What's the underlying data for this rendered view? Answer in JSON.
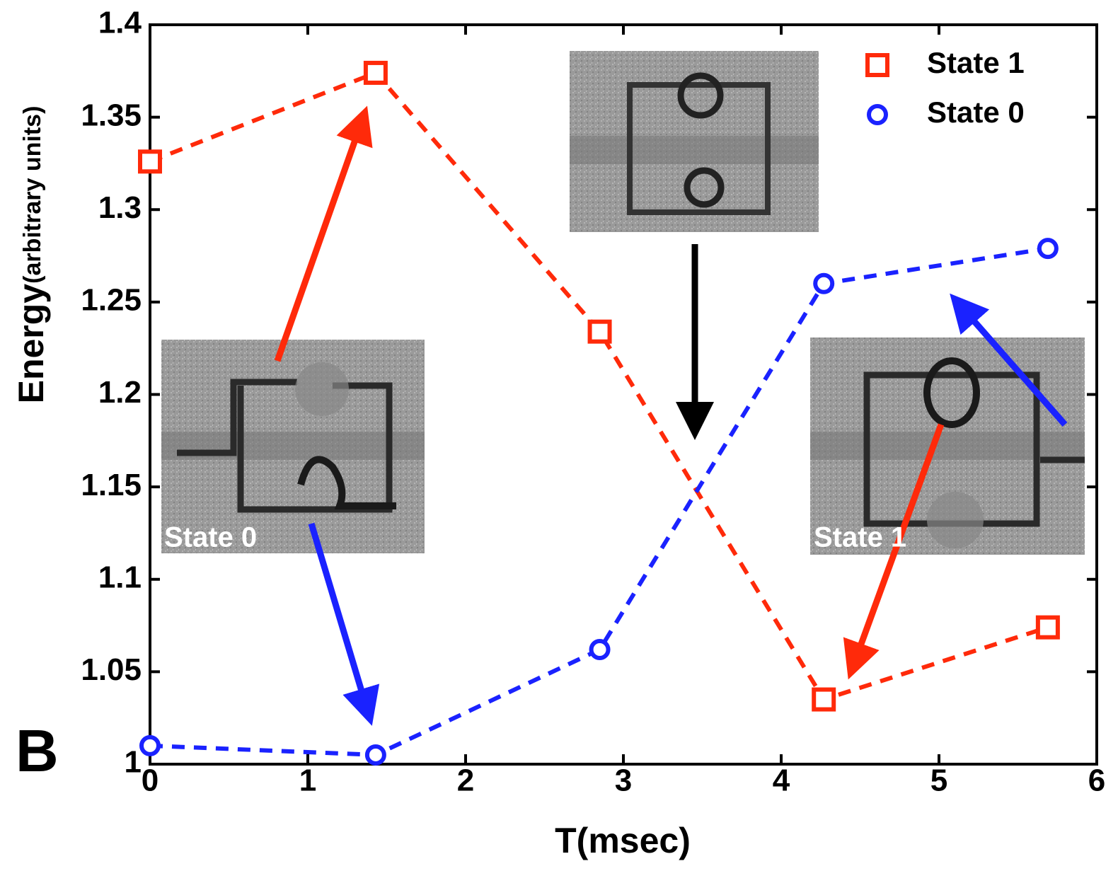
{
  "chart_data": {
    "type": "line",
    "panel_label": "B",
    "xlabel": "T(msec)",
    "ylabel": "Energy",
    "ylabel_units": "(arbitrary units)",
    "x": [
      0,
      1.43,
      2.85,
      4.27,
      5.69
    ],
    "series": [
      {
        "name": "State 1",
        "color": "#ff2a0a",
        "marker": "square",
        "values": [
          1.326,
          1.374,
          1.234,
          1.035,
          1.074
        ]
      },
      {
        "name": "State 0",
        "color": "#1a22ff",
        "marker": "circle",
        "values": [
          1.01,
          1.005,
          1.062,
          1.26,
          1.279
        ]
      }
    ],
    "xlim": [
      0,
      6
    ],
    "xticks": [
      0,
      1,
      2,
      3,
      4,
      5,
      6
    ],
    "ylim": [
      1,
      1.4
    ],
    "yticks": [
      1,
      1.05,
      1.1,
      1.15,
      1.2,
      1.25,
      1.3,
      1.35,
      1.4
    ],
    "legend": "upper right",
    "annotations": [
      "State 0",
      "State 1"
    ]
  }
}
